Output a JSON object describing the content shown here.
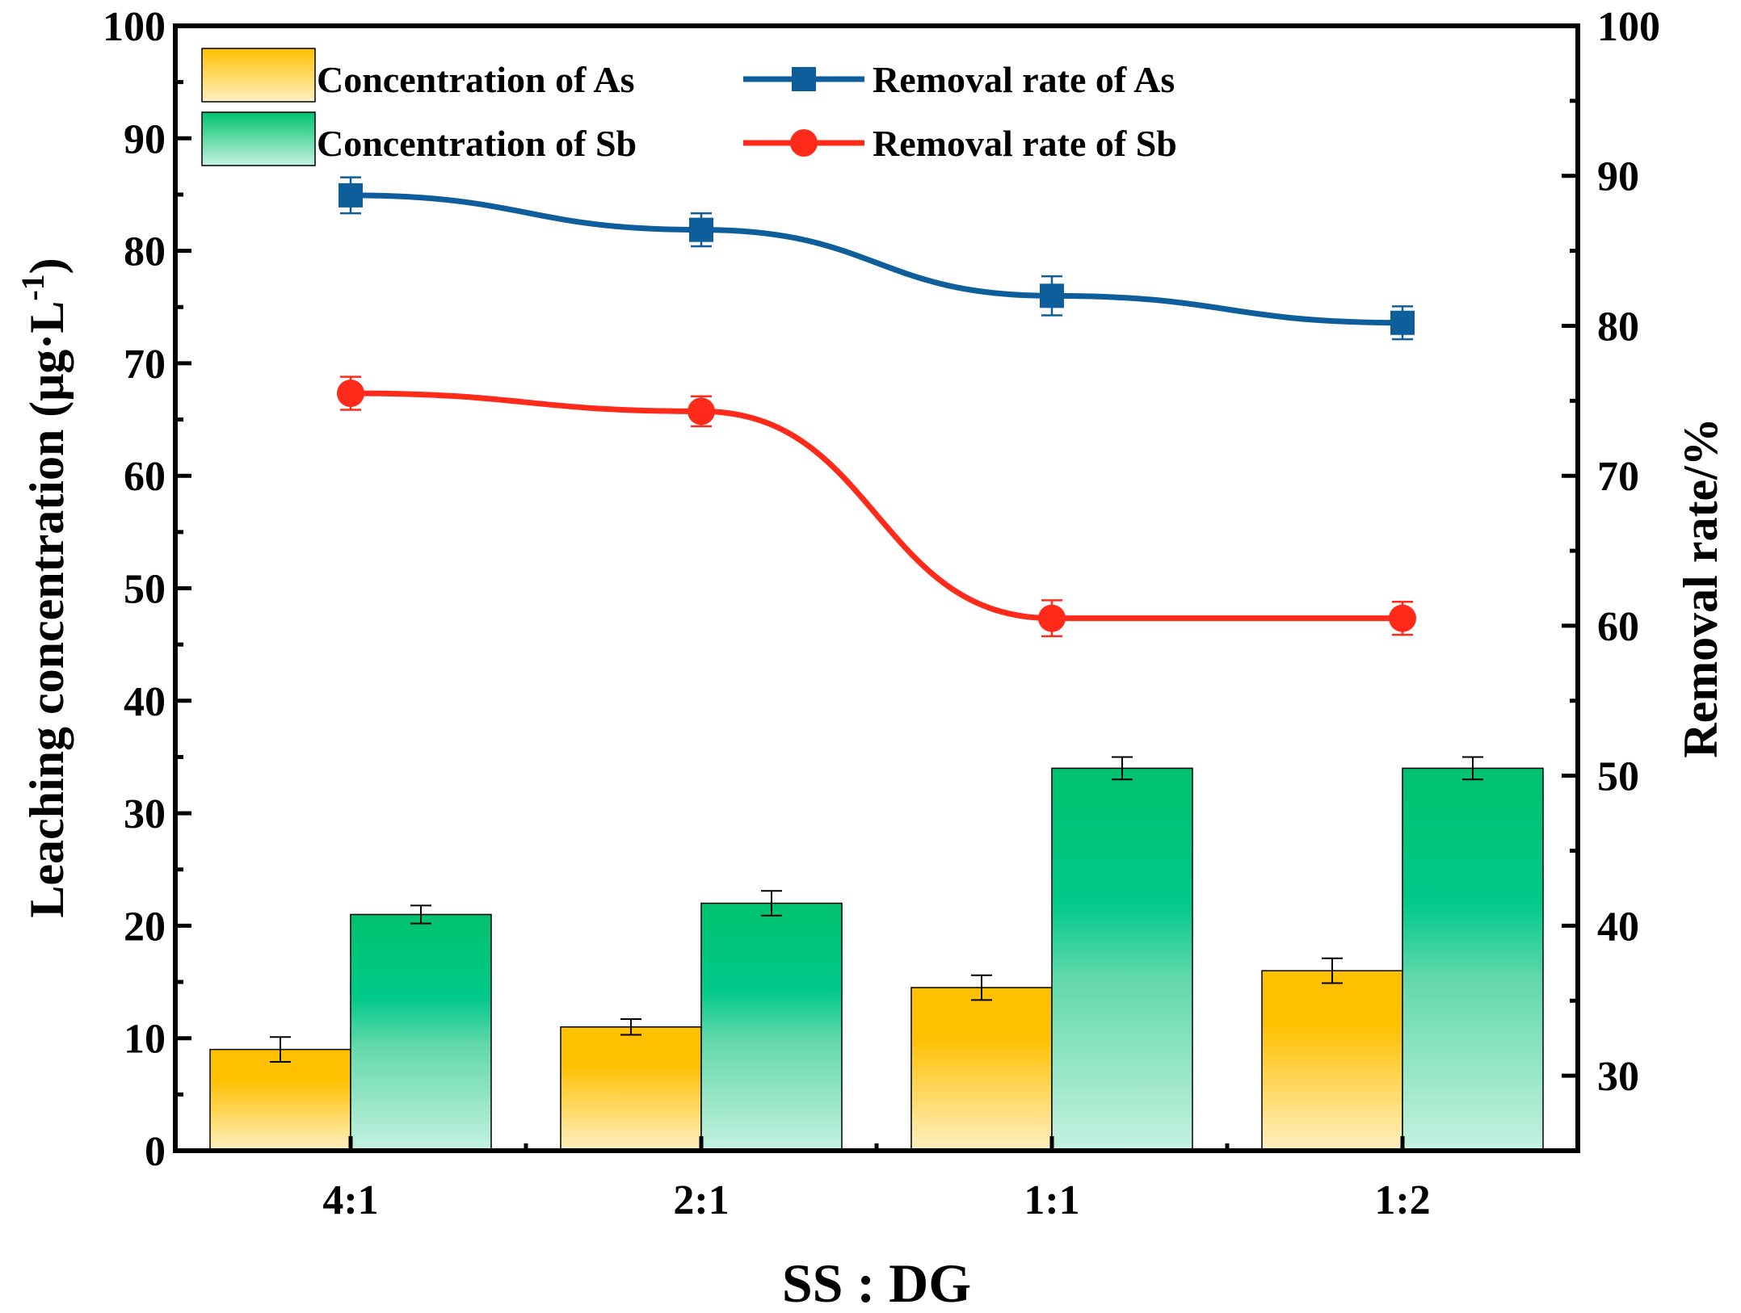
{
  "chart_data": {
    "type": "bar+line",
    "categories": [
      "4:1",
      "2:1",
      "1:1",
      "1:2"
    ],
    "xlabel": "SS : DG",
    "ylabel_left": "Leaching concentration (μg·L",
    "ylabel_left_sup": "-1",
    "ylabel_left_close": ")",
    "ylabel_right": "Removal rate/%",
    "ylim_left": [
      0,
      100
    ],
    "ylim_right": [
      25,
      100
    ],
    "yticks_left": [
      "0",
      "10",
      "20",
      "30",
      "40",
      "50",
      "60",
      "70",
      "80",
      "90",
      "100"
    ],
    "yticks_right": [
      "30",
      "40",
      "50",
      "60",
      "70",
      "80",
      "90",
      "100"
    ],
    "bar_series": [
      {
        "name": "Concentration of As",
        "values": [
          9.0,
          11.0,
          14.5,
          16.0
        ],
        "errors": [
          1.1,
          0.7,
          1.1,
          1.1
        ],
        "color_top": "#FFC000",
        "color_bottom": "#FFF0C4"
      },
      {
        "name": "Concentration of Sb",
        "values": [
          21.0,
          22.0,
          34.0,
          34.0
        ],
        "errors": [
          0.8,
          1.1,
          1.0,
          1.0
        ],
        "color_top": "#00C26E",
        "color_bottom": "#C5F2E0"
      }
    ],
    "line_series": [
      {
        "name": "Removal rate of As",
        "values": [
          88.7,
          86.4,
          82.0,
          80.2
        ],
        "errors": [
          1.2,
          1.1,
          1.3,
          1.1
        ],
        "marker": "square",
        "color": "#0F5E9C"
      },
      {
        "name": "Removal rate of Sb",
        "values": [
          75.5,
          74.3,
          60.5,
          60.5
        ],
        "errors": [
          1.1,
          1.0,
          1.2,
          1.1
        ],
        "marker": "circle",
        "color": "#FF2A1A"
      }
    ]
  }
}
